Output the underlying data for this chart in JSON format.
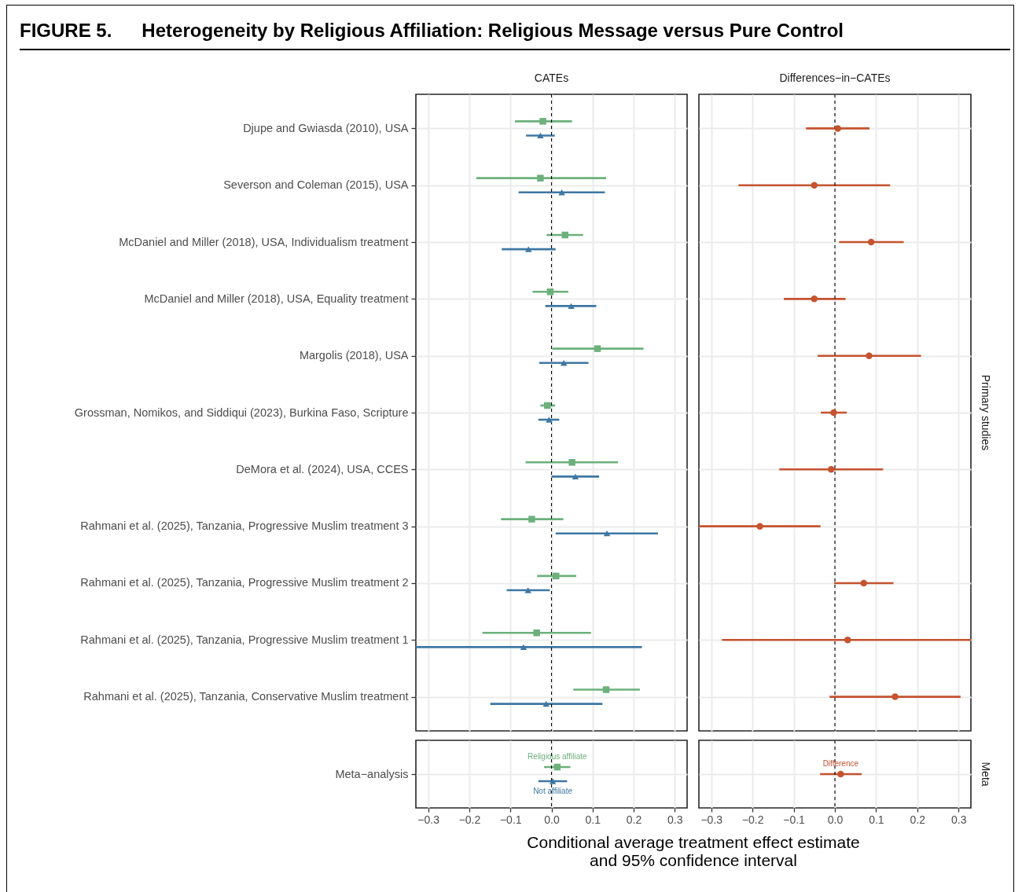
{
  "chart_data": [
    {
      "type": "scatter",
      "title": "CATEs",
      "annotations": [
        "FIGURE 5.",
        "Heterogeneity by Religious Affiliation: Religious Message versus Pure Control"
      ],
      "orientation": "horizontal",
      "categories": [
        "Djupe and Gwiasda (2010), USA",
        "Severson and Coleman (2015), USA",
        "McDaniel and Miller (2018), USA, Individualism treatment",
        "McDaniel and Miller (2018), USA, Equality treatment",
        "Margolis (2018), USA",
        "Grossman, Nomikos, and Siddiqui (2023), Burkina Faso, Scripture",
        "DeMora et al. (2024), USA, CCES",
        "Rahmani et al. (2025), Tanzania, Progressive Muslim treatment 3",
        "Rahmani et al. (2025), Tanzania, Progressive Muslim treatment 2",
        "Rahmani et al. (2025), Tanzania, Progressive Muslim treatment 1",
        "Rahmani et al. (2025), Tanzania, Conservative Muslim treatment"
      ],
      "series": [
        {
          "color": "#6cb07c",
          "marker": "square",
          "values": [
            -0.021,
            -0.027,
            0.033,
            -0.003,
            0.112,
            -0.01,
            0.05,
            -0.048,
            0.011,
            -0.036,
            0.133
          ],
          "errors": [
            [
              -0.089,
              0.05
            ],
            [
              -0.183,
              0.133
            ],
            [
              -0.012,
              0.077
            ],
            [
              -0.046,
              0.041
            ],
            [
              0.002,
              0.224
            ],
            [
              -0.027,
              0.009
            ],
            [
              -0.063,
              0.162
            ],
            [
              -0.123,
              0.029
            ],
            [
              -0.035,
              0.06
            ],
            [
              -0.168,
              0.096
            ],
            [
              0.053,
              0.215
            ]
          ]
        },
        {
          "color": "#3e77a3",
          "marker": "triangle",
          "values": [
            -0.027,
            0.025,
            -0.056,
            0.048,
            0.03,
            -0.006,
            0.058,
            0.135,
            -0.057,
            -0.068,
            -0.013
          ],
          "errors": [
            [
              -0.062,
              0.008
            ],
            [
              -0.08,
              0.13
            ],
            [
              -0.121,
              0.01
            ],
            [
              -0.015,
              0.109
            ],
            [
              -0.03,
              0.09
            ],
            [
              -0.032,
              0.019
            ],
            [
              0.0,
              0.116
            ],
            [
              0.01,
              0.259
            ],
            [
              -0.109,
              -0.004
            ],
            [
              -0.33,
              0.22
            ],
            [
              -0.149,
              0.124
            ]
          ]
        }
      ],
      "xlim": [
        -0.33,
        0.33
      ],
      "xticks": [
        -0.3,
        -0.2,
        -0.1,
        0,
        0.1,
        0.2,
        0.3
      ],
      "grid": true,
      "tick_labels": "y",
      "ref_lines": [
        {
          "axis": "x",
          "value": 0,
          "color": "#000000",
          "line_style": "dashed"
        }
      ]
    },
    {
      "type": "scatter",
      "title": "Differences−in−CATEs",
      "y2label": "Primary studies",
      "orientation": "horizontal",
      "categories": [
        null,
        null,
        null,
        null,
        null,
        null,
        null,
        null,
        null,
        null,
        null
      ],
      "series": [
        {
          "color": "#c55330",
          "marker": "circle",
          "values": [
            0.007,
            -0.05,
            0.088,
            -0.05,
            0.083,
            -0.003,
            -0.009,
            -0.182,
            0.07,
            0.031,
            0.146
          ],
          "errors": [
            [
              -0.07,
              0.084
            ],
            [
              -0.234,
              0.134
            ],
            [
              0.01,
              0.167
            ],
            [
              -0.124,
              0.026
            ],
            [
              -0.042,
              0.209
            ],
            [
              -0.034,
              0.029
            ],
            [
              -0.135,
              0.117
            ],
            [
              -0.33,
              -0.035
            ],
            [
              -0.002,
              0.142
            ],
            [
              -0.274,
              0.33
            ],
            [
              -0.013,
              0.305
            ]
          ]
        }
      ],
      "xlim": [
        -0.33,
        0.33
      ],
      "xticks": [
        -0.3,
        -0.2,
        -0.1,
        0,
        0.1,
        0.2,
        0.3
      ],
      "grid": true,
      "tick_labels": false,
      "ref_lines": [
        {
          "axis": "x",
          "value": 0,
          "color": "#000000",
          "line_style": "dashed"
        }
      ]
    },
    {
      "type": "scatter",
      "xlabel": "Conditional average treatment effect estimate\nand 95% confidence interval",
      "orientation": "horizontal",
      "categories": [
        "Meta−analysis"
      ],
      "series": [
        {
          "name": "Religious affiliate",
          "color": "#6cb07c",
          "marker": "square",
          "values": [
            0.014
          ],
          "errors": [
            [
              -0.018,
              0.046
            ]
          ]
        },
        {
          "name": "Not affiliate",
          "color": "#3e77a3",
          "marker": "triangle",
          "values": [
            0.003
          ],
          "errors": [
            [
              -0.032,
              0.038
            ]
          ]
        }
      ],
      "xlim": [
        -0.33,
        0.33
      ],
      "xticks": [
        {
          "value": -0.3,
          "label": "−0.3"
        },
        {
          "value": -0.2,
          "label": "−0.2"
        },
        {
          "value": -0.1,
          "label": "−0.1"
        },
        {
          "value": 0,
          "label": "0.0"
        },
        {
          "value": 0.1,
          "label": "0.1"
        },
        {
          "value": 0.2,
          "label": "0.2"
        },
        {
          "value": 0.3,
          "label": "0.3"
        }
      ],
      "grid": true,
      "ref_lines": [
        {
          "axis": "x",
          "value": 0,
          "color": "#000000",
          "line_style": "dashed"
        }
      ]
    },
    {
      "type": "scatter",
      "y2label": "Meta",
      "orientation": "horizontal",
      "categories": [
        null
      ],
      "series": [
        {
          "name": "Difference",
          "color": "#c55330",
          "marker": "circle",
          "values": [
            0.014
          ],
          "errors": [
            [
              -0.036,
              0.065
            ]
          ]
        }
      ],
      "xlim": [
        -0.33,
        0.33
      ],
      "xticks": [
        {
          "value": -0.3,
          "label": "−0.3"
        },
        {
          "value": -0.2,
          "label": "−0.2"
        },
        {
          "value": -0.1,
          "label": "−0.1"
        },
        {
          "value": 0,
          "label": "0.0"
        },
        {
          "value": 0.1,
          "label": "0.1"
        },
        {
          "value": 0.2,
          "label": "0.2"
        },
        {
          "value": 0.3,
          "label": "0.3"
        }
      ],
      "grid": true,
      "tick_labels": "x",
      "ref_lines": [
        {
          "axis": "x",
          "value": 0,
          "color": "#000000",
          "line_style": "dashed"
        }
      ]
    }
  ]
}
